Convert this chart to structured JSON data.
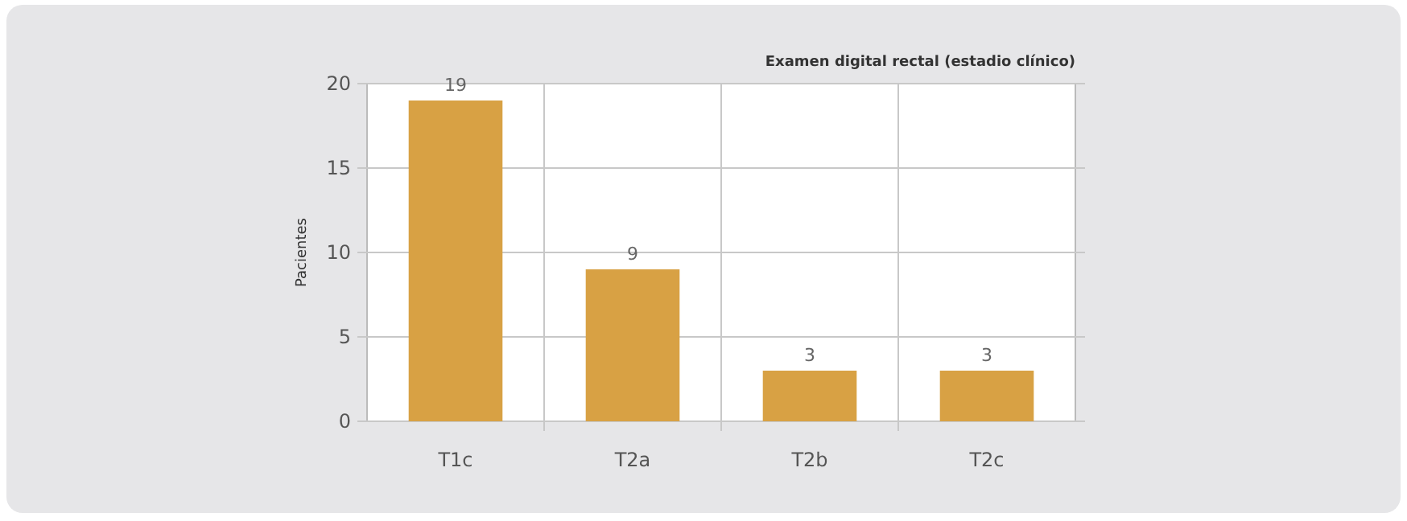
{
  "chart_data": {
    "type": "bar",
    "title": "Examen digital rectal (estadio clínico)",
    "ylabel": "Pacientes",
    "categories": [
      "T1c",
      "T2a",
      "T2b",
      "T2c"
    ],
    "values": [
      19,
      9,
      3,
      3
    ],
    "color": "#d8a144",
    "ylim": [
      0,
      20
    ],
    "yticks": [
      0,
      5,
      10,
      15,
      20
    ],
    "grid": true,
    "data_labels": true
  }
}
